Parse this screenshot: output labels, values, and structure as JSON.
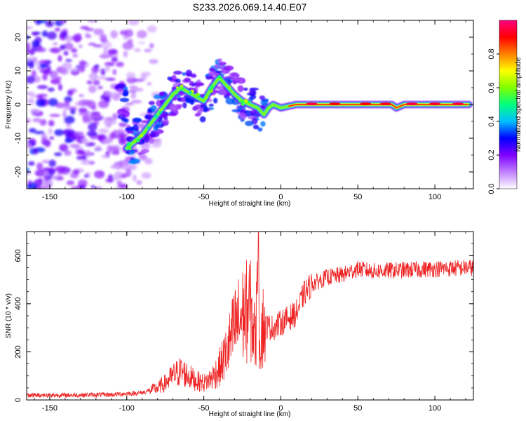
{
  "title": "S233.2026.069.14.40.E07",
  "chart_data": [
    {
      "type": "heatmap",
      "name": "spectrogram",
      "xlabel": "Height of straight line (km)",
      "ylabel": "Frequency (Hz)",
      "xlim": [
        -165,
        125
      ],
      "ylim": [
        -25,
        25
      ],
      "xticks": [
        -150,
        -100,
        -50,
        0,
        50,
        100
      ],
      "yticks": [
        -20,
        -10,
        0,
        10,
        20
      ],
      "colorbar": {
        "label": "Normalized spectral amplitude",
        "range": [
          0,
          1
        ],
        "ticks": [
          0.0,
          0.2,
          0.4,
          0.6,
          0.8
        ],
        "tick_labels": [
          "0.0",
          "0.2",
          "0.4",
          "0.6",
          "0.8"
        ],
        "colors": [
          "#ffffff",
          "#c080ff",
          "#8000ff",
          "#0000ff",
          "#00c0ff",
          "#00ff80",
          "#80ff00",
          "#ffff00",
          "#ff8000",
          "#ff0000",
          "#ff0080"
        ]
      },
      "noise_region": {
        "x": [
          -165,
          -80
        ],
        "y": [
          -25,
          25
        ]
      },
      "ridge": [
        {
          "x": -100,
          "y": -13
        },
        {
          "x": -90,
          "y": -9
        },
        {
          "x": -80,
          "y": -3
        },
        {
          "x": -70,
          "y": 3
        },
        {
          "x": -65,
          "y": 5
        },
        {
          "x": -50,
          "y": 1
        },
        {
          "x": -45,
          "y": 5
        },
        {
          "x": -40,
          "y": 8
        },
        {
          "x": -30,
          "y": 3
        },
        {
          "x": -25,
          "y": 1
        },
        {
          "x": -20,
          "y": 0
        },
        {
          "x": -15,
          "y": -1
        },
        {
          "x": -11,
          "y": -3
        },
        {
          "x": -8,
          "y": -1
        },
        {
          "x": -5,
          "y": 0
        },
        {
          "x": 0,
          "y": -1
        },
        {
          "x": 10,
          "y": 0
        },
        {
          "x": 30,
          "y": 0
        },
        {
          "x": 60,
          "y": 0
        },
        {
          "x": 72,
          "y": 0
        },
        {
          "x": 75,
          "y": -1
        },
        {
          "x": 80,
          "y": 0
        },
        {
          "x": 122,
          "y": 0
        }
      ],
      "hotspots": [
        {
          "x": 20,
          "y": 0.2,
          "v": 0.95
        },
        {
          "x": 35,
          "y": 0.2,
          "v": 0.9
        },
        {
          "x": 55,
          "y": 0.2,
          "v": 0.9
        },
        {
          "x": 68,
          "y": 0.2,
          "v": 0.92
        },
        {
          "x": 85,
          "y": 0.2,
          "v": 0.95
        },
        {
          "x": 100,
          "y": 0.2,
          "v": 0.93
        },
        {
          "x": 115,
          "y": 0.2,
          "v": 0.95
        }
      ]
    },
    {
      "type": "line",
      "name": "snr",
      "xlabel": "Height of straight line (km)",
      "ylabel": "SNR (10 * v/v)",
      "xlim": [
        -165,
        125
      ],
      "ylim": [
        0,
        700
      ],
      "xticks": [
        -150,
        -100,
        -50,
        0,
        50,
        100
      ],
      "yticks": [
        0,
        200,
        400,
        600
      ],
      "color": "#ee2222",
      "trend": [
        {
          "x": -165,
          "y": 20
        },
        {
          "x": -140,
          "y": 20
        },
        {
          "x": -110,
          "y": 22
        },
        {
          "x": -90,
          "y": 30
        },
        {
          "x": -80,
          "y": 50
        },
        {
          "x": -75,
          "y": 70
        },
        {
          "x": -70,
          "y": 100
        },
        {
          "x": -65,
          "y": 120
        },
        {
          "x": -60,
          "y": 100
        },
        {
          "x": -55,
          "y": 80
        },
        {
          "x": -50,
          "y": 70
        },
        {
          "x": -45,
          "y": 90
        },
        {
          "x": -40,
          "y": 130
        },
        {
          "x": -35,
          "y": 200
        },
        {
          "x": -30,
          "y": 300
        },
        {
          "x": -25,
          "y": 350
        },
        {
          "x": -20,
          "y": 380
        },
        {
          "x": -15,
          "y": 200
        },
        {
          "x": -12,
          "y": 310
        },
        {
          "x": -5,
          "y": 300
        },
        {
          "x": 0,
          "y": 320
        },
        {
          "x": 10,
          "y": 360
        },
        {
          "x": 15,
          "y": 440
        },
        {
          "x": 20,
          "y": 480
        },
        {
          "x": 30,
          "y": 510
        },
        {
          "x": 40,
          "y": 520
        },
        {
          "x": 50,
          "y": 545
        },
        {
          "x": 60,
          "y": 535
        },
        {
          "x": 80,
          "y": 540
        },
        {
          "x": 100,
          "y": 545
        },
        {
          "x": 125,
          "y": 550
        }
      ],
      "peak": {
        "x": -15,
        "y": 700
      }
    }
  ]
}
